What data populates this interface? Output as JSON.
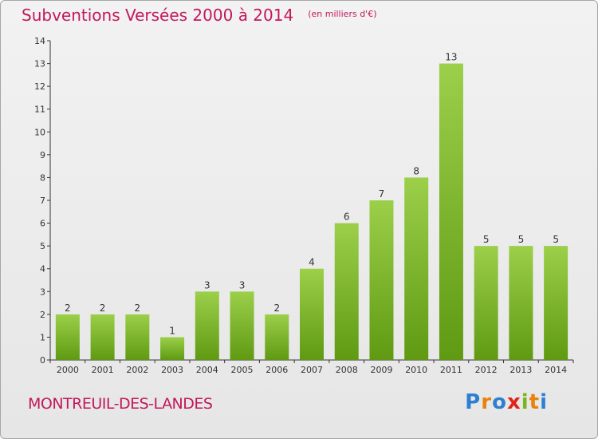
{
  "header": {
    "title": "Subventions Versées 2000 à 2014",
    "subtitle": "(en milliers d'€)"
  },
  "footer": {
    "location": "MONTREUIL-DES-LANDES",
    "brand_letters": [
      {
        "ch": "P",
        "color": "#2f7fd1"
      },
      {
        "ch": "r",
        "color": "#e8820c"
      },
      {
        "ch": "o",
        "color": "#2f7fd1"
      },
      {
        "ch": "x",
        "color": "#e2231a"
      },
      {
        "ch": "i",
        "color": "#7ab51d"
      },
      {
        "ch": "t",
        "color": "#e8820c"
      },
      {
        "ch": "i",
        "color": "#2f7fd1"
      }
    ]
  },
  "colors": {
    "accent": "#c2185b",
    "bar_top": "#9ccf4a",
    "bar_bottom": "#5f9a12"
  },
  "chart_data": {
    "type": "bar",
    "categories": [
      "2000",
      "2001",
      "2002",
      "2003",
      "2004",
      "2005",
      "2006",
      "2007",
      "2008",
      "2009",
      "2010",
      "2011",
      "2012",
      "2013",
      "2014"
    ],
    "values": [
      2,
      2,
      2,
      1,
      3,
      3,
      2,
      4,
      6,
      7,
      8,
      13,
      5,
      5,
      5
    ],
    "title": "Subventions Versées 2000 à 2014",
    "ylim": [
      0,
      14
    ],
    "yticks": [
      0,
      1,
      2,
      3,
      4,
      5,
      6,
      7,
      8,
      9,
      10,
      11,
      12,
      13,
      14
    ],
    "grid": false,
    "legend": "none"
  }
}
